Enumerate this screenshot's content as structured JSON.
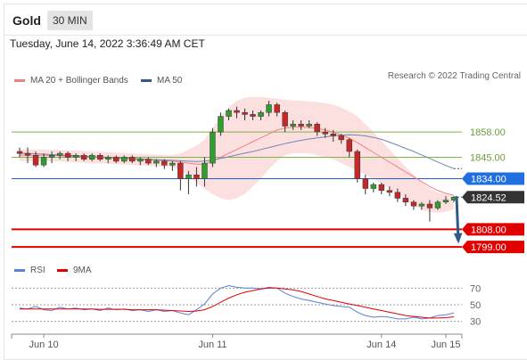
{
  "header": {
    "symbol": "Gold",
    "timeframe": "30 MIN"
  },
  "timestamp": "Tuesday, June 14, 2022 3:36:49 AM CET",
  "legend": {
    "ma_bb": {
      "label": "MA 20 + Bollinger Bands",
      "color": "#f08080"
    },
    "ma50": {
      "label": "MA 50",
      "color": "#2e5c8a"
    },
    "rsi": {
      "label": "RSI",
      "color": "#5b7fd6"
    },
    "rsi_ma": {
      "label": "9MA",
      "color": "#e00000"
    }
  },
  "research": "Research © 2022 Trading Central",
  "chart_data": {
    "type": "line",
    "price_scale": {
      "ylim": [
        1794,
        1880
      ]
    },
    "rsi_scale": {
      "ylim": [
        20,
        80
      ],
      "ticks": [
        "70",
        "50",
        "30"
      ],
      "tick_values": [
        70,
        50,
        30
      ]
    },
    "x_ticks": [
      "Jun 10",
      "Jun 11",
      "Jun 14",
      "Jun 15"
    ],
    "x_tick_index": [
      3,
      24,
      45,
      53
    ],
    "levels": [
      {
        "label": "1858.00",
        "value": 1858.0,
        "kind": "resistance-line",
        "color": "#7ab648"
      },
      {
        "label": "1845.00",
        "value": 1845.0,
        "kind": "resistance-line",
        "color": "#7ab648"
      },
      {
        "label": "1834.00",
        "value": 1834.0,
        "kind": "pivot",
        "color": "#1f5fd6"
      },
      {
        "label": "1824.52",
        "value": 1824.52,
        "kind": "last-price",
        "color": "#222222"
      },
      {
        "label": "1808.00",
        "value": 1808.0,
        "kind": "support",
        "color": "#e00000"
      },
      {
        "label": "1799.00",
        "value": 1799.0,
        "kind": "support",
        "color": "#e00000"
      }
    ],
    "candles": [
      {
        "o": 1848,
        "h": 1850,
        "l": 1845,
        "c": 1847
      },
      {
        "o": 1847,
        "h": 1850,
        "l": 1842,
        "c": 1846
      },
      {
        "o": 1846,
        "h": 1848,
        "l": 1840,
        "c": 1841
      },
      {
        "o": 1841,
        "h": 1847,
        "l": 1840,
        "c": 1845
      },
      {
        "o": 1845,
        "h": 1848,
        "l": 1842,
        "c": 1846
      },
      {
        "o": 1846,
        "h": 1848,
        "l": 1844,
        "c": 1847
      },
      {
        "o": 1847,
        "h": 1848,
        "l": 1843,
        "c": 1845
      },
      {
        "o": 1845,
        "h": 1847,
        "l": 1843,
        "c": 1846
      },
      {
        "o": 1846,
        "h": 1847,
        "l": 1843,
        "c": 1844
      },
      {
        "o": 1844,
        "h": 1847,
        "l": 1843,
        "c": 1846
      },
      {
        "o": 1846,
        "h": 1847,
        "l": 1843,
        "c": 1844
      },
      {
        "o": 1844,
        "h": 1846,
        "l": 1842,
        "c": 1845
      },
      {
        "o": 1845,
        "h": 1846,
        "l": 1842,
        "c": 1843
      },
      {
        "o": 1843,
        "h": 1846,
        "l": 1842,
        "c": 1845
      },
      {
        "o": 1845,
        "h": 1846,
        "l": 1842,
        "c": 1843
      },
      {
        "o": 1843,
        "h": 1845,
        "l": 1841,
        "c": 1844
      },
      {
        "o": 1844,
        "h": 1845,
        "l": 1841,
        "c": 1842
      },
      {
        "o": 1842,
        "h": 1844,
        "l": 1840,
        "c": 1843
      },
      {
        "o": 1843,
        "h": 1844,
        "l": 1839,
        "c": 1841
      },
      {
        "o": 1841,
        "h": 1843,
        "l": 1838,
        "c": 1842
      },
      {
        "o": 1842,
        "h": 1843,
        "l": 1828,
        "c": 1834
      },
      {
        "o": 1834,
        "h": 1838,
        "l": 1826,
        "c": 1836
      },
      {
        "o": 1836,
        "h": 1840,
        "l": 1830,
        "c": 1834
      },
      {
        "o": 1834,
        "h": 1845,
        "l": 1830,
        "c": 1842
      },
      {
        "o": 1842,
        "h": 1860,
        "l": 1840,
        "c": 1858
      },
      {
        "o": 1858,
        "h": 1868,
        "l": 1856,
        "c": 1866
      },
      {
        "o": 1866,
        "h": 1870,
        "l": 1864,
        "c": 1869
      },
      {
        "o": 1869,
        "h": 1871,
        "l": 1865,
        "c": 1868
      },
      {
        "o": 1868,
        "h": 1870,
        "l": 1864,
        "c": 1867
      },
      {
        "o": 1867,
        "h": 1869,
        "l": 1864,
        "c": 1866
      },
      {
        "o": 1866,
        "h": 1869,
        "l": 1864,
        "c": 1868
      },
      {
        "o": 1868,
        "h": 1874,
        "l": 1866,
        "c": 1872
      },
      {
        "o": 1872,
        "h": 1873,
        "l": 1866,
        "c": 1868
      },
      {
        "o": 1868,
        "h": 1869,
        "l": 1858,
        "c": 1861
      },
      {
        "o": 1861,
        "h": 1864,
        "l": 1859,
        "c": 1862
      },
      {
        "o": 1862,
        "h": 1864,
        "l": 1859,
        "c": 1861
      },
      {
        "o": 1861,
        "h": 1864,
        "l": 1860,
        "c": 1862
      },
      {
        "o": 1862,
        "h": 1863,
        "l": 1856,
        "c": 1858
      },
      {
        "o": 1858,
        "h": 1860,
        "l": 1855,
        "c": 1857
      },
      {
        "o": 1857,
        "h": 1859,
        "l": 1853,
        "c": 1856
      },
      {
        "o": 1856,
        "h": 1857,
        "l": 1852,
        "c": 1854
      },
      {
        "o": 1854,
        "h": 1855,
        "l": 1845,
        "c": 1848
      },
      {
        "o": 1848,
        "h": 1849,
        "l": 1832,
        "c": 1834
      },
      {
        "o": 1834,
        "h": 1836,
        "l": 1826,
        "c": 1829
      },
      {
        "o": 1829,
        "h": 1832,
        "l": 1827,
        "c": 1831
      },
      {
        "o": 1831,
        "h": 1832,
        "l": 1826,
        "c": 1828
      },
      {
        "o": 1828,
        "h": 1830,
        "l": 1825,
        "c": 1827
      },
      {
        "o": 1827,
        "h": 1829,
        "l": 1822,
        "c": 1824
      },
      {
        "o": 1824,
        "h": 1826,
        "l": 1820,
        "c": 1822
      },
      {
        "o": 1822,
        "h": 1823,
        "l": 1818,
        "c": 1820
      },
      {
        "o": 1820,
        "h": 1822,
        "l": 1818,
        "c": 1821
      },
      {
        "o": 1821,
        "h": 1823,
        "l": 1812,
        "c": 1819
      },
      {
        "o": 1819,
        "h": 1823,
        "l": 1818,
        "c": 1822
      },
      {
        "o": 1822,
        "h": 1825,
        "l": 1821,
        "c": 1823
      },
      {
        "o": 1823,
        "h": 1825,
        "l": 1822,
        "c": 1824.5
      }
    ],
    "ma20": [
      1846,
      1846,
      1846,
      1846,
      1846,
      1845.8,
      1845.6,
      1845.4,
      1845.2,
      1845,
      1844.8,
      1844.6,
      1844.4,
      1844.2,
      1844,
      1843.8,
      1843.6,
      1843.4,
      1843.2,
      1843,
      1842.5,
      1842,
      1841.5,
      1841.5,
      1843,
      1845,
      1847,
      1849,
      1851,
      1853,
      1855,
      1857,
      1859,
      1860,
      1860.5,
      1860.5,
      1860.3,
      1859.8,
      1859,
      1858,
      1856.5,
      1854.8,
      1852.5,
      1850,
      1847.5,
      1845,
      1842.5,
      1840,
      1837.5,
      1835,
      1832.5,
      1830,
      1828,
      1826.5,
      1825.5
    ],
    "bb_upper": [
      1849,
      1849,
      1849,
      1849,
      1849,
      1848.8,
      1848.6,
      1848.4,
      1848.2,
      1848,
      1847.8,
      1847.6,
      1847.4,
      1847.2,
      1847,
      1846.8,
      1846.6,
      1846.4,
      1846.2,
      1846,
      1847,
      1849,
      1851,
      1854,
      1860,
      1866,
      1871,
      1874,
      1875.5,
      1876,
      1876,
      1875.5,
      1875,
      1874.5,
      1874.2,
      1874,
      1873.7,
      1873.3,
      1872.8,
      1872,
      1870.5,
      1868.5,
      1866,
      1862,
      1858,
      1853.5,
      1849,
      1844.5,
      1840,
      1836,
      1832,
      1829,
      1827,
      1826,
      1825.5
    ],
    "bb_lower": [
      1843,
      1843,
      1843,
      1843,
      1843,
      1842.8,
      1842.6,
      1842.4,
      1842.2,
      1842,
      1841.8,
      1841.6,
      1841.4,
      1841.2,
      1841,
      1840.8,
      1840.6,
      1840.4,
      1840.2,
      1840,
      1838,
      1835,
      1832,
      1829,
      1826,
      1824,
      1823,
      1824,
      1826,
      1830,
      1834,
      1839,
      1843,
      1846,
      1847,
      1847,
      1847,
      1846,
      1845,
      1844,
      1842,
      1840,
      1838,
      1836,
      1834,
      1831.5,
      1829,
      1826,
      1823,
      1820.5,
      1818,
      1817,
      1816.5,
      1817,
      1818.5
    ],
    "ma50": [
      1847,
      1847,
      1846.8,
      1846.6,
      1846.4,
      1846.2,
      1846,
      1845.8,
      1845.6,
      1845.4,
      1845.2,
      1845,
      1844.8,
      1844.6,
      1844.4,
      1844.2,
      1844,
      1843.8,
      1843.6,
      1843.4,
      1843.2,
      1843,
      1842.8,
      1843,
      1843.6,
      1844.4,
      1845.3,
      1846.2,
      1847.1,
      1848,
      1849,
      1850,
      1851,
      1852,
      1852.9,
      1853.7,
      1854.4,
      1855,
      1855.5,
      1856,
      1856.4,
      1856.6,
      1856.4,
      1856,
      1855.2,
      1854.2,
      1852.8,
      1851.2,
      1849.6,
      1848,
      1846.2,
      1844.4,
      1842.6,
      1840.8,
      1839.2
    ],
    "rsi": [
      46,
      45,
      48,
      44,
      43,
      47,
      45,
      46,
      44,
      45,
      43,
      46,
      44,
      45,
      43,
      44,
      42,
      44,
      42,
      43,
      40,
      38,
      44,
      51,
      63,
      70,
      73,
      71,
      70,
      70,
      69,
      71,
      70,
      64,
      60,
      57,
      55,
      53,
      51,
      49,
      48,
      47,
      41,
      37,
      35,
      36,
      35,
      33,
      33,
      35,
      33,
      34,
      37,
      38,
      40
    ],
    "rsi_ma": [
      45,
      45,
      45,
      45,
      45,
      45,
      45,
      45,
      45,
      45,
      44.5,
      44.5,
      44.5,
      44.5,
      44,
      44,
      44,
      44,
      43.5,
      43,
      42.5,
      42,
      42.5,
      44,
      48,
      53,
      58,
      62,
      65,
      67,
      69,
      70,
      70,
      69,
      68,
      66,
      63,
      60,
      57,
      55,
      53,
      51,
      49,
      47,
      45,
      43,
      41,
      39,
      37,
      36,
      35,
      34,
      34,
      34.5,
      35.5
    ],
    "projection": {
      "from": 1825,
      "to": 1802
    }
  }
}
